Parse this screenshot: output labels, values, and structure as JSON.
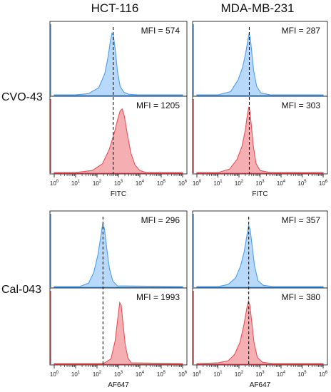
{
  "figure": {
    "column_titles": [
      "HCT-116",
      "MDA-MB-231"
    ],
    "row_titles": [
      "CVO-43",
      "Cal-043"
    ]
  },
  "chart_data": [
    {
      "type": "area",
      "x_scale": "log",
      "xlim": [
        1,
        1000000
      ],
      "xlabel": "FITC",
      "column": "HCT-116",
      "row": "CVO-43",
      "x_tick_labels": [
        "10^0",
        "10^1",
        "10^2",
        "10^3",
        "10^4",
        "10^5",
        "10^6"
      ],
      "grid": false,
      "subplots": [
        {
          "mfi_label": "MFI = 574",
          "color": "#4a9ff0",
          "fill": "#b9d9fb",
          "median_line_x": 574,
          "curve": [
            [
              1,
              1
            ],
            [
              10,
              1
            ],
            [
              40,
              3
            ],
            [
              120,
              12
            ],
            [
              230,
              34
            ],
            [
              330,
              60
            ],
            [
              420,
              84
            ],
            [
              500,
              96
            ],
            [
              580,
              93
            ],
            [
              700,
              72
            ],
            [
              900,
              38
            ],
            [
              1200,
              14
            ],
            [
              1800,
              5
            ],
            [
              3000,
              2
            ],
            [
              8000,
              1
            ],
            [
              1000000,
              1
            ]
          ]
        },
        {
          "mfi_label": "MFI = 1205",
          "color": "#e8525a",
          "fill": "#f5aeb2",
          "median_line_x": 574,
          "curve": [
            [
              1,
              1
            ],
            [
              10,
              1
            ],
            [
              60,
              4
            ],
            [
              180,
              14
            ],
            [
              380,
              36
            ],
            [
              650,
              60
            ],
            [
              900,
              78
            ],
            [
              1200,
              92
            ],
            [
              1500,
              95
            ],
            [
              1900,
              84
            ],
            [
              2600,
              58
            ],
            [
              3800,
              30
            ],
            [
              6000,
              12
            ],
            [
              10000,
              4
            ],
            [
              20000,
              1
            ],
            [
              1000000,
              1
            ]
          ]
        }
      ]
    },
    {
      "type": "area",
      "x_scale": "log",
      "xlim": [
        1,
        1000000
      ],
      "xlabel": "FITC",
      "column": "MDA-MB-231",
      "row": "CVO-43",
      "x_tick_labels": [
        "10^0",
        "10^1",
        "10^2",
        "10^3",
        "10^4",
        "10^5",
        "10^6"
      ],
      "grid": false,
      "subplots": [
        {
          "mfi_label": "MFI = 287",
          "color": "#4a9ff0",
          "fill": "#b9d9fb",
          "median_line_x": 310,
          "curve": [
            [
              1,
              1
            ],
            [
              10,
              1
            ],
            [
              40,
              6
            ],
            [
              90,
              24
            ],
            [
              150,
              44
            ],
            [
              210,
              66
            ],
            [
              260,
              84
            ],
            [
              300,
              95
            ],
            [
              340,
              90
            ],
            [
              400,
              68
            ],
            [
              500,
              38
            ],
            [
              700,
              14
            ],
            [
              1100,
              4
            ],
            [
              3000,
              1
            ],
            [
              1000000,
              1
            ]
          ]
        },
        {
          "mfi_label": "MFI = 303",
          "color": "#e8525a",
          "fill": "#f5aeb2",
          "median_line_x": 310,
          "curve": [
            [
              1,
              1
            ],
            [
              10,
              1
            ],
            [
              35,
              6
            ],
            [
              80,
              20
            ],
            [
              140,
              40
            ],
            [
              200,
              64
            ],
            [
              250,
              86
            ],
            [
              290,
              97
            ],
            [
              330,
              92
            ],
            [
              390,
              70
            ],
            [
              480,
              40
            ],
            [
              650,
              14
            ],
            [
              1000,
              4
            ],
            [
              3000,
              1
            ],
            [
              1000000,
              1
            ]
          ]
        }
      ]
    },
    {
      "type": "area",
      "x_scale": "log",
      "xlim": [
        1,
        1000000
      ],
      "xlabel": "AF647",
      "column": "HCT-116",
      "row": "Cal-043",
      "x_tick_labels": [
        "10^0",
        "10^1",
        "10^2",
        "10^3",
        "10^4",
        "10^5",
        "10^6"
      ],
      "grid": false,
      "subplots": [
        {
          "mfi_label": "MFI = 296",
          "color": "#4a9ff0",
          "fill": "#b9d9fb",
          "median_line_x": 190,
          "curve": [
            [
              1,
              1
            ],
            [
              15,
              1
            ],
            [
              40,
              6
            ],
            [
              70,
              22
            ],
            [
              110,
              48
            ],
            [
              150,
              76
            ],
            [
              185,
              95
            ],
            [
              220,
              88
            ],
            [
              280,
              60
            ],
            [
              380,
              28
            ],
            [
              550,
              9
            ],
            [
              900,
              2
            ],
            [
              1000000,
              1
            ]
          ]
        },
        {
          "mfi_label": "MFI = 1993",
          "color": "#e8525a",
          "fill": "#f5aeb2",
          "median_line_x": 190,
          "curve": [
            [
              1,
              1
            ],
            [
              200,
              1
            ],
            [
              450,
              8
            ],
            [
              700,
              35
            ],
            [
              950,
              70
            ],
            [
              1150,
              92
            ],
            [
              1350,
              88
            ],
            [
              1650,
              60
            ],
            [
              2100,
              28
            ],
            [
              2800,
              9
            ],
            [
              4000,
              2
            ],
            [
              1000000,
              1
            ]
          ]
        }
      ]
    },
    {
      "type": "area",
      "x_scale": "log",
      "xlim": [
        1,
        1000000
      ],
      "xlabel": "AF647",
      "column": "MDA-MB-231",
      "row": "Cal-043",
      "x_tick_labels": [
        "10^0",
        "10^1",
        "10^2",
        "10^3",
        "10^4",
        "10^5",
        "10^6"
      ],
      "grid": false,
      "subplots": [
        {
          "mfi_label": "MFI = 357",
          "color": "#4a9ff0",
          "fill": "#b9d9fb",
          "median_line_x": 290,
          "curve": [
            [
              1,
              1
            ],
            [
              10,
              1
            ],
            [
              30,
              4
            ],
            [
              70,
              14
            ],
            [
              120,
              32
            ],
            [
              180,
              54
            ],
            [
              240,
              78
            ],
            [
              290,
              92
            ],
            [
              340,
              86
            ],
            [
              420,
              62
            ],
            [
              550,
              32
            ],
            [
              800,
              10
            ],
            [
              1400,
              3
            ],
            [
              4000,
              1
            ],
            [
              1000000,
              1
            ]
          ]
        },
        {
          "mfi_label": "MFI = 380",
          "color": "#e8525a",
          "fill": "#f5aeb2",
          "median_line_x": 290,
          "curve": [
            [
              1,
              1
            ],
            [
              10,
              2
            ],
            [
              30,
              5
            ],
            [
              60,
              14
            ],
            [
              110,
              32
            ],
            [
              170,
              58
            ],
            [
              230,
              82
            ],
            [
              280,
              94
            ],
            [
              330,
              88
            ],
            [
              400,
              64
            ],
            [
              520,
              32
            ],
            [
              750,
              10
            ],
            [
              1300,
              3
            ],
            [
              4000,
              1
            ],
            [
              1000000,
              1
            ]
          ]
        }
      ]
    }
  ]
}
